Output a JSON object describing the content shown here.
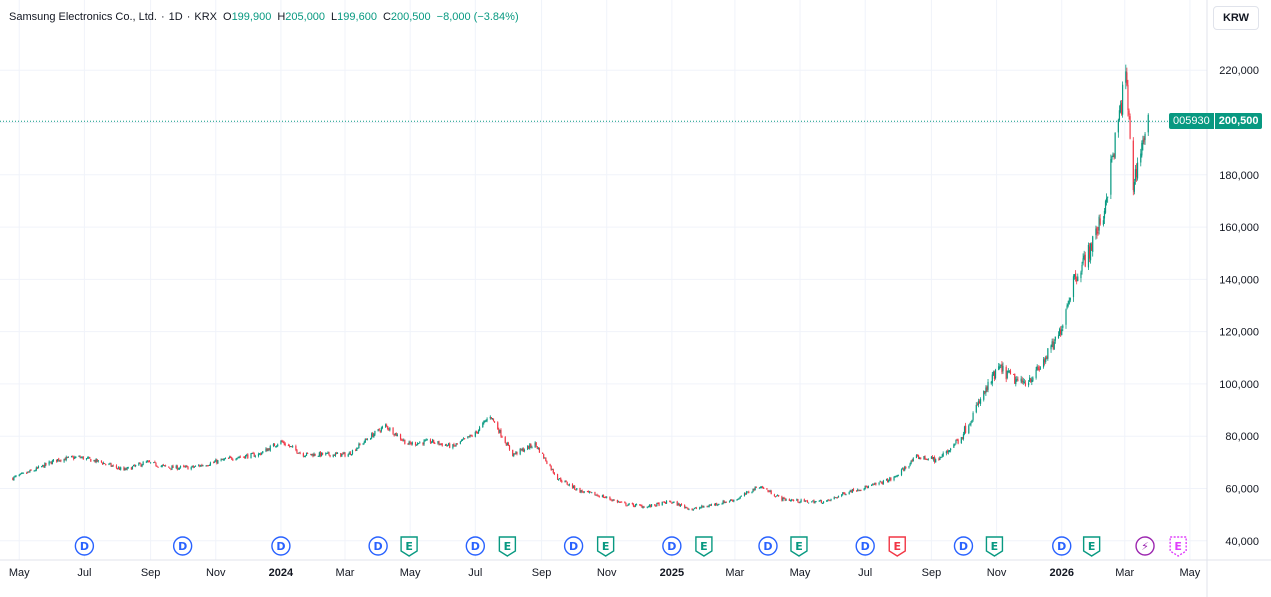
{
  "legend": {
    "symbol": "Samsung Electronics Co., Ltd.",
    "interval": "1D",
    "exchange": "KRX",
    "open_label": "O",
    "open": "199,900",
    "high_label": "H",
    "high": "205,000",
    "low_label": "L",
    "low": "199,600",
    "close_label": "C",
    "close": "200,500",
    "change": "−8,000 (−3.84%)"
  },
  "currency_button": "KRW",
  "last_price_tag": {
    "symbol": "005930",
    "price": "200,500"
  },
  "colors": {
    "up": "#089981",
    "down": "#f23645",
    "grid": "#f0f3fa",
    "axis_text": "#131722",
    "dividend": "#2962ff",
    "earnings": "#089981",
    "earnings_future": "#f23645",
    "split": "#9c27b0",
    "future_earnings": "#e040fb"
  },
  "chart_data": {
    "type": "line",
    "title": "",
    "xlabel": "",
    "ylabel": "",
    "ylim": [
      35000,
      225000
    ],
    "y_ticks": [
      "40,000",
      "60,000",
      "80,000",
      "100,000",
      "120,000",
      "140,000",
      "160,000",
      "180,000",
      "200,000",
      "220,000"
    ],
    "x_tick_labels": [
      "May",
      "Jul",
      "Sep",
      "Nov",
      "2024",
      "Mar",
      "May",
      "Jul",
      "Sep",
      "Nov",
      "2025",
      "Mar",
      "May",
      "Jul",
      "Sep",
      "Nov",
      "2026",
      "Mar",
      "May"
    ],
    "x_tick_dates": [
      "2023-05-01",
      "2023-07-01",
      "2023-09-01",
      "2023-11-01",
      "2024-01-01",
      "2024-03-01",
      "2024-05-01",
      "2024-07-01",
      "2024-09-01",
      "2024-11-01",
      "2025-01-01",
      "2025-03-01",
      "2025-05-01",
      "2025-07-01",
      "2025-09-01",
      "2025-11-01",
      "2026-01-01",
      "2026-03-01",
      "2026-05-01"
    ],
    "series": [
      {
        "x": [
          "2023-04-25",
          "2023-05-15",
          "2023-06-05",
          "2023-06-26",
          "2023-07-17",
          "2023-08-07",
          "2023-08-28",
          "2023-09-18",
          "2023-10-09",
          "2023-10-30",
          "2023-11-20",
          "2023-12-11",
          "2024-01-01",
          "2024-01-22",
          "2024-02-12",
          "2024-03-04",
          "2024-03-25",
          "2024-04-08",
          "2024-04-29",
          "2024-05-20",
          "2024-06-10",
          "2024-07-01",
          "2024-07-15",
          "2024-08-05",
          "2024-08-26",
          "2024-09-16",
          "2024-10-07",
          "2024-10-28",
          "2024-11-18",
          "2024-12-09",
          "2024-12-30",
          "2025-01-20",
          "2025-02-10",
          "2025-03-03",
          "2025-03-24",
          "2025-04-14",
          "2025-05-05",
          "2025-05-26",
          "2025-06-16",
          "2025-07-07",
          "2025-07-28",
          "2025-08-18",
          "2025-09-08",
          "2025-09-29",
          "2025-10-20",
          "2025-11-03",
          "2025-11-24",
          "2025-12-08",
          "2025-12-29",
          "2026-01-12",
          "2026-01-26",
          "2026-02-09",
          "2026-02-23",
          "2026-03-02",
          "2026-03-09",
          "2026-03-16",
          "2026-03-23"
        ],
        "y": [
          64000,
          67000,
          71000,
          72000,
          70000,
          67000,
          70000,
          68000,
          68000,
          70000,
          72000,
          73000,
          78000,
          73000,
          73000,
          73000,
          80000,
          84000,
          77000,
          78000,
          76000,
          81000,
          88000,
          73000,
          77000,
          64000,
          59000,
          57000,
          54000,
          53000,
          55000,
          52000,
          54000,
          56000,
          61000,
          56000,
          55000,
          55000,
          59000,
          61000,
          64000,
          72000,
          71000,
          80000,
          96000,
          106000,
          100000,
          104000,
          118000,
          140000,
          150000,
          165000,
          200000,
          218000,
          176000,
          190000,
          200500
        ]
      }
    ],
    "events": [
      {
        "type": "D",
        "date": "2023-07-01"
      },
      {
        "type": "D",
        "date": "2023-10-01"
      },
      {
        "type": "D",
        "date": "2024-01-01"
      },
      {
        "type": "D",
        "date": "2024-04-01"
      },
      {
        "type": "E",
        "date": "2024-04-30"
      },
      {
        "type": "D",
        "date": "2024-07-01"
      },
      {
        "type": "E",
        "date": "2024-07-31"
      },
      {
        "type": "D",
        "date": "2024-10-01"
      },
      {
        "type": "E",
        "date": "2024-10-31"
      },
      {
        "type": "D",
        "date": "2025-01-01"
      },
      {
        "type": "E",
        "date": "2025-01-31"
      },
      {
        "type": "D",
        "date": "2025-04-01"
      },
      {
        "type": "E",
        "date": "2025-04-30"
      },
      {
        "type": "D",
        "date": "2025-07-01"
      },
      {
        "type": "E",
        "date": "2025-07-31"
      },
      {
        "type": "D",
        "date": "2025-10-01"
      },
      {
        "type": "E",
        "date": "2025-10-30"
      },
      {
        "type": "D",
        "date": "2026-01-01"
      },
      {
        "type": "E",
        "date": "2026-01-29"
      },
      {
        "type": "S",
        "date": "2026-03-20"
      },
      {
        "type": "E",
        "date": "2026-04-20"
      }
    ],
    "event_labels": {
      "D": "D",
      "E": "E",
      "S": "⚡"
    },
    "grid": true
  }
}
